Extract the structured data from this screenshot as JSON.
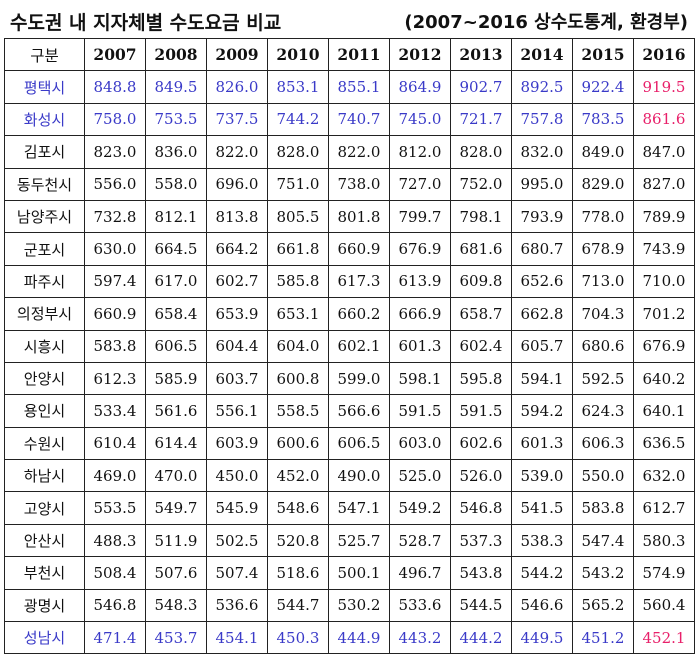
{
  "header": {
    "title": "수도권 내 지자체별 수도요금 비교",
    "source": "(2007~2016 상수도통계, 환경부)"
  },
  "table": {
    "columns": [
      "구분",
      "2007",
      "2008",
      "2009",
      "2010",
      "2011",
      "2012",
      "2013",
      "2014",
      "2015",
      "2016"
    ],
    "rows": [
      {
        "city": "평택시",
        "values": [
          "848.8",
          "849.5",
          "826.0",
          "853.1",
          "855.1",
          "864.9",
          "902.7",
          "892.5",
          "922.4",
          "919.5"
        ],
        "highlight": "blue",
        "last": "pink"
      },
      {
        "city": "화성시",
        "values": [
          "758.0",
          "753.5",
          "737.5",
          "744.2",
          "740.7",
          "745.0",
          "721.7",
          "757.8",
          "783.5",
          "861.6"
        ],
        "highlight": "blue",
        "last": "pink"
      },
      {
        "city": "김포시",
        "values": [
          "823.0",
          "836.0",
          "822.0",
          "828.0",
          "822.0",
          "812.0",
          "828.0",
          "832.0",
          "849.0",
          "847.0"
        ]
      },
      {
        "city": "동두천시",
        "values": [
          "556.0",
          "558.0",
          "696.0",
          "751.0",
          "738.0",
          "727.0",
          "752.0",
          "995.0",
          "829.0",
          "827.0"
        ]
      },
      {
        "city": "남양주시",
        "values": [
          "732.8",
          "812.1",
          "813.8",
          "805.5",
          "801.8",
          "799.7",
          "798.1",
          "793.9",
          "778.0",
          "789.9"
        ]
      },
      {
        "city": "군포시",
        "values": [
          "630.0",
          "664.5",
          "664.2",
          "661.8",
          "660.9",
          "676.9",
          "681.6",
          "680.7",
          "678.9",
          "743.9"
        ]
      },
      {
        "city": "파주시",
        "values": [
          "597.4",
          "617.0",
          "602.7",
          "585.8",
          "617.3",
          "613.9",
          "609.8",
          "652.6",
          "713.0",
          "710.0"
        ]
      },
      {
        "city": "의정부시",
        "values": [
          "660.9",
          "658.4",
          "653.9",
          "653.1",
          "660.2",
          "666.9",
          "658.7",
          "662.8",
          "704.3",
          "701.2"
        ]
      },
      {
        "city": "시흥시",
        "values": [
          "583.8",
          "606.5",
          "604.4",
          "604.0",
          "602.1",
          "601.3",
          "602.4",
          "605.7",
          "680.6",
          "676.9"
        ]
      },
      {
        "city": "안양시",
        "values": [
          "612.3",
          "585.9",
          "603.7",
          "600.8",
          "599.0",
          "598.1",
          "595.8",
          "594.1",
          "592.5",
          "640.2"
        ]
      },
      {
        "city": "용인시",
        "values": [
          "533.4",
          "561.6",
          "556.1",
          "558.5",
          "566.6",
          "591.5",
          "591.5",
          "594.2",
          "624.3",
          "640.1"
        ]
      },
      {
        "city": "수원시",
        "values": [
          "610.4",
          "614.4",
          "603.9",
          "600.6",
          "606.5",
          "603.0",
          "602.6",
          "601.3",
          "606.3",
          "636.5"
        ]
      },
      {
        "city": "하남시",
        "values": [
          "469.0",
          "470.0",
          "450.0",
          "452.0",
          "490.0",
          "525.0",
          "526.0",
          "539.0",
          "550.0",
          "632.0"
        ]
      },
      {
        "city": "고양시",
        "values": [
          "553.5",
          "549.7",
          "545.9",
          "548.6",
          "547.1",
          "549.2",
          "546.8",
          "541.5",
          "583.8",
          "612.7"
        ]
      },
      {
        "city": "안산시",
        "values": [
          "488.3",
          "511.9",
          "502.5",
          "520.8",
          "525.7",
          "528.7",
          "537.3",
          "538.3",
          "547.4",
          "580.3"
        ]
      },
      {
        "city": "부천시",
        "values": [
          "508.4",
          "507.6",
          "507.4",
          "518.6",
          "500.1",
          "496.7",
          "543.8",
          "544.2",
          "543.2",
          "574.9"
        ]
      },
      {
        "city": "광명시",
        "values": [
          "546.8",
          "548.3",
          "536.6",
          "544.7",
          "530.2",
          "533.6",
          "544.5",
          "546.6",
          "565.2",
          "560.4"
        ]
      },
      {
        "city": "성남시",
        "values": [
          "471.4",
          "453.7",
          "454.1",
          "450.3",
          "444.9",
          "443.2",
          "444.2",
          "449.5",
          "451.2",
          "452.1"
        ],
        "highlight": "blue",
        "last": "pink"
      }
    ]
  }
}
